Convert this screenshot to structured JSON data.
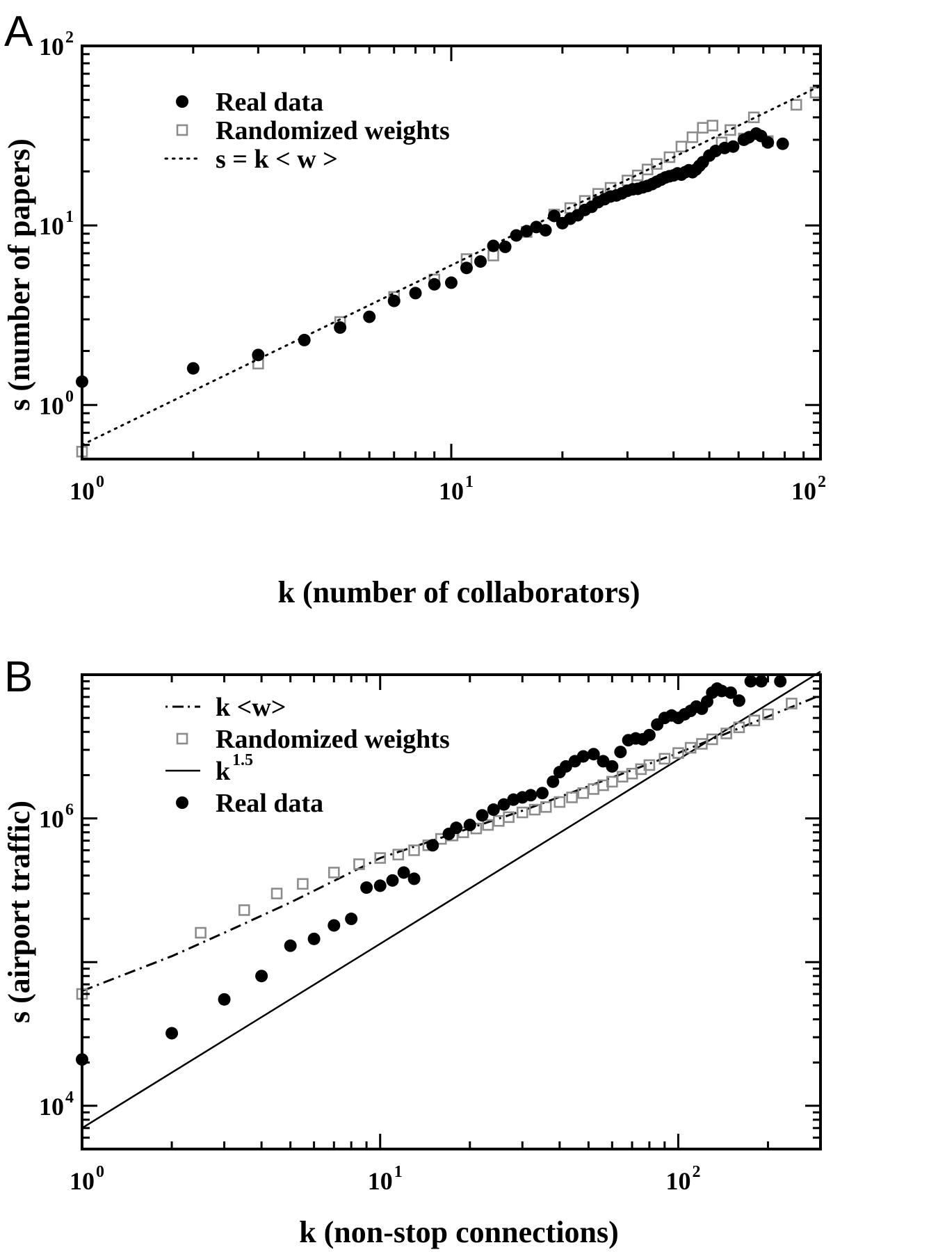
{
  "chart_data": [
    {
      "panel": "A",
      "type": "scatter",
      "xlabel": "k (number of collaborators)",
      "ylabel": "s (number of papers)",
      "x_scale": "log",
      "y_scale": "log",
      "xlim": [
        1,
        100
      ],
      "ylim": [
        0.5,
        100
      ],
      "x_ticks": [
        {
          "base": "10",
          "exp": "0",
          "value": 1
        },
        {
          "base": "10",
          "exp": "1",
          "value": 10
        },
        {
          "base": "10",
          "exp": "2",
          "value": 100
        }
      ],
      "y_ticks": [
        {
          "base": "10",
          "exp": "0",
          "value": 1
        },
        {
          "base": "10",
          "exp": "1",
          "value": 10
        },
        {
          "base": "10",
          "exp": "2",
          "value": 100
        }
      ],
      "legend_position": "top-left",
      "legend": [
        {
          "label": "Real data",
          "marker": "filled-circle"
        },
        {
          "label": "Randomized weights",
          "marker": "open-square"
        },
        {
          "label": "s = k  < w >",
          "marker": "dotted-line"
        }
      ],
      "series": [
        {
          "name": "Real data",
          "style": "filled-circle",
          "color": "#000000",
          "points": [
            [
              1,
              1.35
            ],
            [
              2,
              1.6
            ],
            [
              3,
              1.9
            ],
            [
              4,
              2.3
            ],
            [
              5,
              2.7
            ],
            [
              6,
              3.1
            ],
            [
              7,
              3.8
            ],
            [
              8,
              4.2
            ],
            [
              9,
              4.7
            ],
            [
              10,
              4.8
            ],
            [
              11,
              5.8
            ],
            [
              12,
              6.3
            ],
            [
              13,
              7.7
            ],
            [
              14,
              7.6
            ],
            [
              15,
              8.8
            ],
            [
              16,
              9.3
            ],
            [
              17,
              9.8
            ],
            [
              18,
              9.4
            ],
            [
              19,
              11.3
            ],
            [
              20,
              10.3
            ],
            [
              21,
              10.9
            ],
            [
              22,
              11.4
            ],
            [
              23,
              12.2
            ],
            [
              24,
              12.7
            ],
            [
              25,
              13.5
            ],
            [
              26,
              14.0
            ],
            [
              27,
              14.5
            ],
            [
              28,
              14.7
            ],
            [
              29,
              15.1
            ],
            [
              30,
              15.6
            ],
            [
              31,
              15.9
            ],
            [
              32,
              16.0
            ],
            [
              33,
              16.3
            ],
            [
              34,
              16.6
            ],
            [
              35,
              17.0
            ],
            [
              36,
              17.5
            ],
            [
              37,
              18.0
            ],
            [
              38,
              18.5
            ],
            [
              39,
              18.8
            ],
            [
              40,
              19.0
            ],
            [
              41,
              19.5
            ],
            [
              42,
              19.2
            ],
            [
              43,
              19.8
            ],
            [
              44,
              20.3
            ],
            [
              45,
              19.8
            ],
            [
              46,
              20.5
            ],
            [
              47,
              21.5
            ],
            [
              48,
              22.5
            ],
            [
              50,
              24.5
            ],
            [
              52,
              26.0
            ],
            [
              55,
              27.0
            ],
            [
              58,
              27.5
            ],
            [
              62,
              30.0
            ],
            [
              64,
              31.0
            ],
            [
              67,
              32.5
            ],
            [
              69,
              31.5
            ],
            [
              72,
              29.0
            ],
            [
              79,
              28.5
            ]
          ]
        },
        {
          "name": "Randomized weights",
          "style": "open-square",
          "color": "#8c8c8c",
          "points": [
            [
              1,
              0.55
            ],
            [
              3,
              1.7
            ],
            [
              5,
              2.9
            ],
            [
              7,
              4.0
            ],
            [
              9,
              5.0
            ],
            [
              11,
              6.5
            ],
            [
              13,
              6.8
            ],
            [
              16,
              9.2
            ],
            [
              19,
              11.5
            ],
            [
              21,
              12.5
            ],
            [
              23,
              13.7
            ],
            [
              25,
              15.0
            ],
            [
              27,
              16.2
            ],
            [
              30,
              17.8
            ],
            [
              32,
              19.0
            ],
            [
              34,
              20.5
            ],
            [
              36,
              22.0
            ],
            [
              39,
              24.0
            ],
            [
              42,
              27.5
            ],
            [
              45,
              31.0
            ],
            [
              48,
              35.0
            ],
            [
              51,
              36.0
            ],
            [
              54,
              29.0
            ],
            [
              57,
              34.0
            ],
            [
              62,
              30.5
            ],
            [
              66,
              40.0
            ],
            [
              72,
              29.5
            ],
            [
              86,
              47.0
            ],
            [
              97,
              55.0
            ]
          ]
        },
        {
          "name": "s = k  < w >",
          "style": "dotted-line",
          "color": "#000000",
          "function": "s = 0.6 * k",
          "points": [
            [
              1,
              0.6
            ],
            [
              100,
              60
            ]
          ]
        }
      ]
    },
    {
      "panel": "B",
      "type": "scatter",
      "xlabel": "k (non-stop connections)",
      "ylabel": "s (airport traffic)",
      "x_scale": "log",
      "y_scale": "log",
      "xlim": [
        1,
        300
      ],
      "ylim": [
        5000,
        10000000
      ],
      "x_ticks": [
        {
          "base": "10",
          "exp": "0",
          "value": 1
        },
        {
          "base": "10",
          "exp": "1",
          "value": 10
        },
        {
          "base": "10",
          "exp": "2",
          "value": 100
        }
      ],
      "y_ticks": [
        {
          "base": "10",
          "exp": "4",
          "value": 10000
        },
        {
          "base": "10",
          "exp": "6",
          "value": 1000000
        }
      ],
      "legend_position": "top-left",
      "legend": [
        {
          "label": "k <w>",
          "marker": "dash-dot-line"
        },
        {
          "label": "Randomized weights",
          "marker": "open-square"
        },
        {
          "label": "k",
          "label_sup": "1.5",
          "marker": "solid-line"
        },
        {
          "label": "Real data",
          "marker": "filled-circle"
        }
      ],
      "series": [
        {
          "name": "Real data",
          "style": "filled-circle",
          "color": "#000000",
          "points": [
            [
              1,
              21000
            ],
            [
              2,
              32000
            ],
            [
              3,
              55000
            ],
            [
              4,
              80000
            ],
            [
              5,
              130000
            ],
            [
              6,
              145000
            ],
            [
              7,
              180000
            ],
            [
              8,
              200000
            ],
            [
              9,
              330000
            ],
            [
              10,
              340000
            ],
            [
              11,
              370000
            ],
            [
              12,
              420000
            ],
            [
              13,
              380000
            ],
            [
              15,
              650000
            ],
            [
              17,
              780000
            ],
            [
              18,
              860000
            ],
            [
              20,
              900000
            ],
            [
              22,
              1050000
            ],
            [
              24,
              1150000
            ],
            [
              26,
              1250000
            ],
            [
              28,
              1350000
            ],
            [
              30,
              1400000
            ],
            [
              32,
              1450000
            ],
            [
              35,
              1500000
            ],
            [
              38,
              1800000
            ],
            [
              40,
              2100000
            ],
            [
              42,
              2300000
            ],
            [
              45,
              2500000
            ],
            [
              48,
              2700000
            ],
            [
              52,
              2800000
            ],
            [
              56,
              2500000
            ],
            [
              60,
              2300000
            ],
            [
              64,
              2900000
            ],
            [
              68,
              3500000
            ],
            [
              72,
              3600000
            ],
            [
              76,
              3550000
            ],
            [
              80,
              3800000
            ],
            [
              85,
              4500000
            ],
            [
              90,
              5000000
            ],
            [
              95,
              5200000
            ],
            [
              100,
              5000000
            ],
            [
              105,
              5300000
            ],
            [
              110,
              5600000
            ],
            [
              115,
              6000000
            ],
            [
              120,
              5800000
            ],
            [
              125,
              6500000
            ],
            [
              130,
              7500000
            ],
            [
              135,
              8000000
            ],
            [
              140,
              7700000
            ],
            [
              150,
              7500000
            ],
            [
              160,
              6600000
            ],
            [
              175,
              9000000
            ],
            [
              190,
              9000000
            ],
            [
              220,
              9000000
            ]
          ]
        },
        {
          "name": "Randomized weights",
          "style": "open-square",
          "color": "#8c8c8c",
          "points": [
            [
              1,
              60000
            ],
            [
              2.5,
              160000
            ],
            [
              3.5,
              230000
            ],
            [
              4.5,
              300000
            ],
            [
              5.5,
              350000
            ],
            [
              7,
              420000
            ],
            [
              8.5,
              480000
            ],
            [
              10,
              530000
            ],
            [
              11.5,
              560000
            ],
            [
              13,
              600000
            ],
            [
              14.5,
              650000
            ],
            [
              16,
              720000
            ],
            [
              17.5,
              760000
            ],
            [
              19,
              800000
            ],
            [
              21,
              850000
            ],
            [
              23,
              900000
            ],
            [
              25,
              960000
            ],
            [
              27,
              1020000
            ],
            [
              30,
              1100000
            ],
            [
              33,
              1150000
            ],
            [
              36,
              1200000
            ],
            [
              40,
              1300000
            ],
            [
              44,
              1400000
            ],
            [
              48,
              1500000
            ],
            [
              52,
              1600000
            ],
            [
              56,
              1700000
            ],
            [
              60,
              1800000
            ],
            [
              65,
              1950000
            ],
            [
              70,
              2050000
            ],
            [
              75,
              2200000
            ],
            [
              80,
              2350000
            ],
            [
              90,
              2600000
            ],
            [
              100,
              2850000
            ],
            [
              110,
              3100000
            ],
            [
              120,
              3300000
            ],
            [
              130,
              3550000
            ],
            [
              145,
              3900000
            ],
            [
              160,
              4300000
            ],
            [
              180,
              4800000
            ],
            [
              200,
              5300000
            ],
            [
              240,
              6300000
            ]
          ]
        },
        {
          "name": "k <w>",
          "style": "dash-dot-line",
          "color": "#000000",
          "function": "s = k <w>",
          "points": [
            [
              1,
              63000
            ],
            [
              2,
              110000
            ],
            [
              3,
              160000
            ],
            [
              5,
              260000
            ],
            [
              10,
              530000
            ],
            [
              30,
              1130000
            ],
            [
              100,
              2850000
            ],
            [
              300,
              7200000
            ]
          ]
        },
        {
          "name": "k^1.5",
          "style": "solid-line",
          "color": "#000000",
          "function": "s ∝ k^1.5",
          "points": [
            [
              1,
              7000
            ],
            [
              300,
              10500000
            ]
          ]
        }
      ]
    }
  ]
}
